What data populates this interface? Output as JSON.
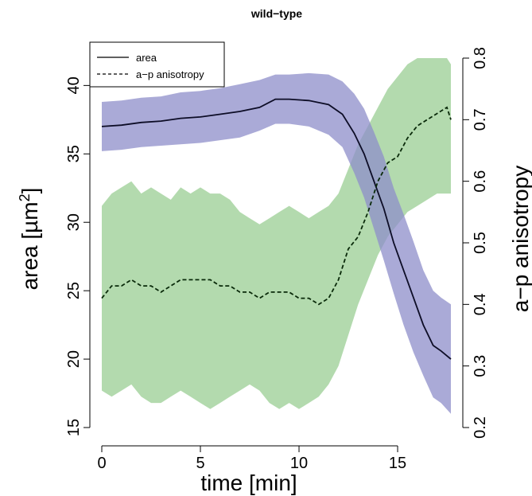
{
  "chart_data": {
    "type": "line",
    "title": "wild−type",
    "xlabel": "time [min]",
    "ylabel_left": "area [µm",
    "ylabel_left_sup": "2",
    "ylabel_left_close": "]",
    "ylabel_right": "a−p anisotropy",
    "xlim": [
      0,
      17.7
    ],
    "ylim_left": [
      15,
      42
    ],
    "ylim_right": [
      0.2,
      0.8
    ],
    "x_ticks": [
      0,
      5,
      10,
      15
    ],
    "x_tick_labels": [
      "0",
      "5",
      "10",
      "15"
    ],
    "y_left_ticks": [
      15,
      20,
      25,
      30,
      35,
      40
    ],
    "y_left_tick_labels": [
      "15",
      "20",
      "25",
      "30",
      "35",
      "40"
    ],
    "y_right_ticks": [
      0.2,
      0.3,
      0.4,
      0.5,
      0.6,
      0.7,
      0.8
    ],
    "y_right_tick_labels": [
      "0.2",
      "0.3",
      "0.4",
      "0.5",
      "0.6",
      "0.7",
      "0.8"
    ],
    "grid": false,
    "legend_position": "top-left",
    "legend": [
      {
        "label": "area",
        "line_style": "solid"
      },
      {
        "label": "a−p anisotropy",
        "line_style": "dashed"
      }
    ],
    "series": [
      {
        "name": "area",
        "axis": "left",
        "line_color": "#0d0d26",
        "band_color": "#8e8ec9",
        "x": [
          0,
          1,
          2,
          3,
          4,
          5,
          6,
          7,
          8,
          8.8,
          9.5,
          10.5,
          11.5,
          12.2,
          12.8,
          13.3,
          13.8,
          14.3,
          14.8,
          15.3,
          15.8,
          16.3,
          16.8,
          17.2,
          17.7
        ],
        "y": [
          37,
          37.1,
          37.3,
          37.4,
          37.6,
          37.7,
          37.9,
          38.1,
          38.4,
          39,
          39,
          38.9,
          38.6,
          37.9,
          36.5,
          35,
          33,
          31,
          28.5,
          26.5,
          24.5,
          22.5,
          21,
          20.6,
          20
        ],
        "band_lower": [
          35.2,
          35.3,
          35.5,
          35.6,
          35.7,
          35.8,
          36,
          36.2,
          36.7,
          37.2,
          37.2,
          37,
          36.4,
          35.5,
          33.6,
          31.8,
          29.5,
          27.2,
          24.8,
          22.5,
          20.5,
          18.8,
          17.2,
          16.8,
          16
        ],
        "band_upper": [
          38.8,
          38.9,
          39.1,
          39.2,
          39.5,
          39.6,
          39.8,
          40.1,
          40.4,
          40.8,
          40.8,
          40.9,
          40.8,
          40.3,
          39.4,
          38.3,
          36.6,
          34.8,
          32.5,
          30.6,
          28.6,
          26.5,
          25,
          24.5,
          24
        ]
      },
      {
        "name": "a−p anisotropy",
        "axis": "right",
        "line_color": "#0a2a0a",
        "band_color": "#a6d3a0",
        "x": [
          0,
          0.5,
          1,
          1.5,
          2,
          2.5,
          3,
          3.5,
          4,
          4.5,
          5,
          5.5,
          6,
          6.5,
          7,
          7.5,
          8,
          8.5,
          9,
          9.5,
          10,
          10.5,
          11,
          11.5,
          12,
          12.5,
          13,
          13.5,
          14,
          14.5,
          15,
          15.5,
          16,
          16.5,
          17,
          17.5,
          17.7
        ],
        "y": [
          0.41,
          0.43,
          0.43,
          0.44,
          0.43,
          0.43,
          0.42,
          0.43,
          0.44,
          0.44,
          0.44,
          0.44,
          0.43,
          0.43,
          0.42,
          0.42,
          0.41,
          0.42,
          0.42,
          0.42,
          0.41,
          0.41,
          0.4,
          0.41,
          0.44,
          0.49,
          0.51,
          0.55,
          0.6,
          0.63,
          0.64,
          0.67,
          0.69,
          0.7,
          0.71,
          0.72,
          0.7
        ],
        "band_lower": [
          0.26,
          0.25,
          0.26,
          0.27,
          0.25,
          0.24,
          0.24,
          0.25,
          0.26,
          0.25,
          0.24,
          0.23,
          0.24,
          0.25,
          0.26,
          0.27,
          0.26,
          0.24,
          0.23,
          0.24,
          0.23,
          0.24,
          0.25,
          0.27,
          0.3,
          0.35,
          0.4,
          0.44,
          0.48,
          0.51,
          0.53,
          0.55,
          0.56,
          0.57,
          0.58,
          0.58,
          0.58
        ],
        "band_upper": [
          0.56,
          0.58,
          0.59,
          0.6,
          0.58,
          0.59,
          0.58,
          0.57,
          0.59,
          0.58,
          0.59,
          0.58,
          0.58,
          0.57,
          0.55,
          0.54,
          0.53,
          0.54,
          0.55,
          0.56,
          0.55,
          0.54,
          0.55,
          0.56,
          0.58,
          0.62,
          0.66,
          0.69,
          0.72,
          0.75,
          0.77,
          0.79,
          0.8,
          0.8,
          0.8,
          0.8,
          0.79
        ]
      }
    ]
  }
}
